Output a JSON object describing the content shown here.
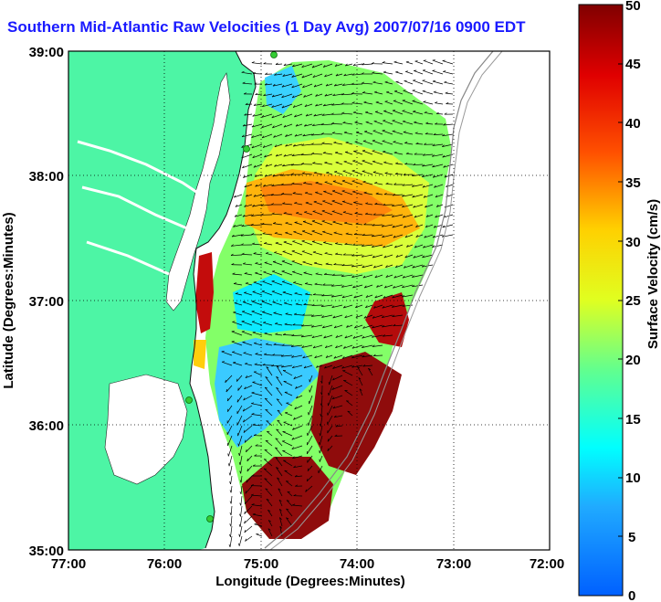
{
  "title": "Southern Mid-Atlantic Raw Velocities (1 Day Avg) 2007/07/16 0900 EDT",
  "xlabel": "Longitude (Degrees:Minutes)",
  "ylabel": "Latitude (Degrees:Minutes)",
  "colorbar_label": "Surface Velocity (cm/s)",
  "x_ticks": [
    "77:00",
    "76:00",
    "75:00",
    "74:00",
    "73:00",
    "72:00"
  ],
  "y_ticks": [
    "39:00",
    "38:00",
    "37:00",
    "36:00",
    "35:00"
  ],
  "colorbar_ticks": [
    "0",
    "5",
    "10",
    "15",
    "20",
    "25",
    "30",
    "35",
    "40",
    "45",
    "50"
  ],
  "colors": {
    "land": "#4df5a5",
    "water": "#ffffff",
    "title": "#1a1aff",
    "vectors": "#000000",
    "stations": "#33cc33"
  },
  "chart_data": {
    "type": "heatmap",
    "title": "Southern Mid-Atlantic Raw Velocities (1 Day Avg) 2007/07/16 0900 EDT",
    "xlabel": "Longitude (Degrees:Minutes)",
    "ylabel": "Latitude (Degrees:Minutes)",
    "xlim": [
      -77,
      -72
    ],
    "ylim": [
      35,
      39
    ],
    "colorbar": {
      "label": "Surface Velocity (cm/s)",
      "range": [
        0,
        50
      ],
      "colormap": "jet"
    },
    "grid": true
  }
}
